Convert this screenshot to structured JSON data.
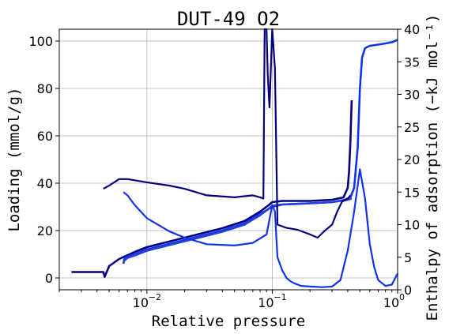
{
  "chart_data": {
    "type": "line",
    "title": "DUT-49 O2",
    "xlabel": "Relative pressure",
    "ylabel_left": "Loading (mmol/g)",
    "ylabel_right": "Enthalpy of adsorption (−kJ mol⁻¹)",
    "x_scale": "log",
    "xlim": [
      0.002,
      1.0
    ],
    "ylim_left": [
      -5,
      105
    ],
    "ylim_right": [
      0,
      40
    ],
    "grid": true,
    "x_ticks": [
      {
        "base": "10",
        "exp": "−2",
        "value": 0.01
      },
      {
        "base": "10",
        "exp": "−1",
        "value": 0.1
      },
      {
        "base": "10",
        "exp": "0",
        "value": 1.0
      }
    ],
    "y_ticks_left": [
      "0",
      "20",
      "40",
      "60",
      "80",
      "100"
    ],
    "y_ticks_left_values": [
      0,
      20,
      40,
      60,
      80,
      100
    ],
    "y_ticks_right": [
      "0",
      "5",
      "10",
      "15",
      "20",
      "25",
      "30",
      "35",
      "40"
    ],
    "y_ticks_right_values": [
      0,
      5,
      10,
      15,
      20,
      25,
      30,
      35,
      40
    ],
    "series": [
      {
        "axis": "left",
        "color": "#00007f",
        "x": [
          0.0025,
          0.0045,
          0.0046,
          0.005,
          0.006,
          0.008,
          0.01,
          0.02,
          0.04,
          0.06,
          0.08,
          0.095,
          0.1,
          0.12,
          0.15,
          0.2,
          0.3,
          0.37,
          0.4,
          0.41,
          0.42,
          0.43
        ],
        "y": [
          2.5,
          2.5,
          0.5,
          5,
          8,
          11,
          13,
          17,
          21,
          24,
          28,
          31,
          32,
          32.5,
          32.5,
          32.5,
          33,
          34,
          38,
          45,
          58,
          75
        ]
      },
      {
        "axis": "left",
        "color": "#1133ee",
        "x": [
          0.0065,
          0.0066,
          0.007,
          0.008,
          0.01,
          0.02,
          0.04,
          0.06,
          0.08,
          0.1,
          0.12,
          0.2,
          0.3,
          0.38,
          0.42,
          0.45,
          0.48,
          0.5,
          0.52,
          0.55,
          0.6,
          0.7,
          0.8,
          0.9,
          1.0
        ],
        "y": [
          6,
          8,
          9,
          10,
          12,
          16,
          20,
          23,
          27,
          30,
          31,
          31.5,
          32,
          33,
          34,
          38,
          55,
          80,
          93,
          97,
          98,
          98.5,
          99,
          99.5,
          100.5
        ]
      },
      {
        "axis": "left",
        "color": "#223fe0",
        "x": [
          0.0065,
          0.007,
          0.008,
          0.01,
          0.02,
          0.04,
          0.06,
          0.08,
          0.095,
          0.1,
          0.12,
          0.2,
          0.3,
          0.4,
          0.43
        ],
        "y": [
          7,
          8.5,
          9.5,
          11.5,
          15.5,
          19.5,
          22.5,
          26.5,
          29.5,
          30.5,
          31,
          31.5,
          32,
          33,
          33.5
        ]
      },
      {
        "axis": "right",
        "color": "#00007f",
        "x": [
          0.0045,
          0.005,
          0.006,
          0.007,
          0.01,
          0.015,
          0.02,
          0.03,
          0.05,
          0.07,
          0.08,
          0.085,
          0.087,
          0.09,
          0.092,
          0.095,
          0.1,
          0.105,
          0.11,
          0.13,
          0.16,
          0.2,
          0.23,
          0.26,
          0.3,
          0.33,
          0.36,
          0.4,
          0.42
        ],
        "y": [
          15.5,
          16,
          17,
          17,
          16.5,
          16,
          15.5,
          14.5,
          14.2,
          14.5,
          14.2,
          14,
          40,
          40,
          33,
          28,
          40,
          34,
          10,
          9.5,
          9.2,
          8.5,
          8,
          9,
          10,
          12,
          13.5,
          14,
          14.5
        ]
      },
      {
        "axis": "right",
        "color": "#1133ee",
        "x": [
          0.0065,
          0.007,
          0.008,
          0.01,
          0.015,
          0.02,
          0.03,
          0.05,
          0.07,
          0.09,
          0.1,
          0.105,
          0.11,
          0.12,
          0.13,
          0.14,
          0.15,
          0.17,
          0.2,
          0.25,
          0.3,
          0.35,
          0.4,
          0.45,
          0.5,
          0.55,
          0.6,
          0.65,
          0.7,
          0.8,
          0.9,
          1.0
        ],
        "y": [
          15,
          14.5,
          13,
          11,
          9,
          8,
          7,
          6.8,
          7.2,
          8.5,
          13,
          12,
          5,
          3,
          1.8,
          1.3,
          1,
          0.6,
          0.5,
          0.4,
          0.5,
          1.5,
          6,
          12,
          18.5,
          14,
          7,
          3.5,
          1.5,
          0.6,
          0.8,
          2.5
        ]
      }
    ]
  }
}
